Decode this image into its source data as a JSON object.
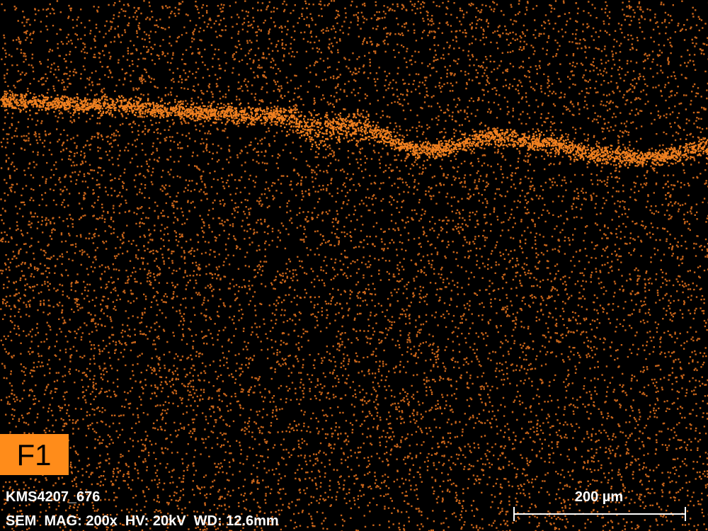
{
  "map_label": "F1",
  "sample_id": "KMS4207_676",
  "acquisition": "SEM  MAG: 200x  HV: 20kV  WD: 12.6mm",
  "scale_bar": "200 µm"
}
